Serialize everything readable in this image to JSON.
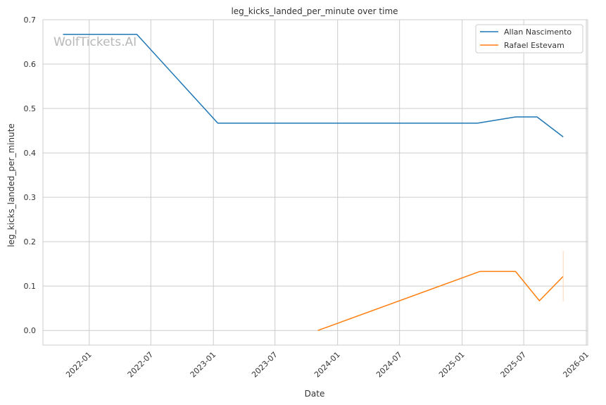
{
  "chart_data": {
    "type": "line",
    "title": "leg_kicks_landed_per_minute over time",
    "xlabel": "Date",
    "ylabel": "leg_kicks_landed_per_minute",
    "watermark": "WolfTickets.AI",
    "x_ticks": [
      "2022-01",
      "2022-07",
      "2023-01",
      "2023-07",
      "2024-01",
      "2024-07",
      "2025-01",
      "2025-07",
      "2026-01"
    ],
    "y_ticks": [
      "0.0",
      "0.1",
      "0.2",
      "0.3",
      "0.4",
      "0.5",
      "0.6",
      "0.7"
    ],
    "xlim": [
      "2021-08-18",
      "2026-01-05"
    ],
    "ylim": [
      -0.033,
      0.7
    ],
    "grid": true,
    "legend_position": "top-right",
    "series": [
      {
        "name": "Allan Nascimento",
        "color": "#1f77b4",
        "points": [
          [
            "2021-10-16",
            0.667
          ],
          [
            "2022-05-21",
            0.667
          ],
          [
            "2023-01-14",
            0.467
          ],
          [
            "2025-02-15",
            0.467
          ],
          [
            "2025-06-07",
            0.481
          ],
          [
            "2025-08-09",
            0.481
          ],
          [
            "2025-10-25",
            0.436
          ]
        ]
      },
      {
        "name": "Rafael Estevam",
        "color": "#ff7f0e",
        "points": [
          [
            "2023-11-04",
            0.0
          ],
          [
            "2025-02-22",
            0.133
          ],
          [
            "2025-06-07",
            0.133
          ],
          [
            "2025-08-16",
            0.067
          ],
          [
            "2025-10-25",
            0.122
          ]
        ]
      }
    ]
  }
}
